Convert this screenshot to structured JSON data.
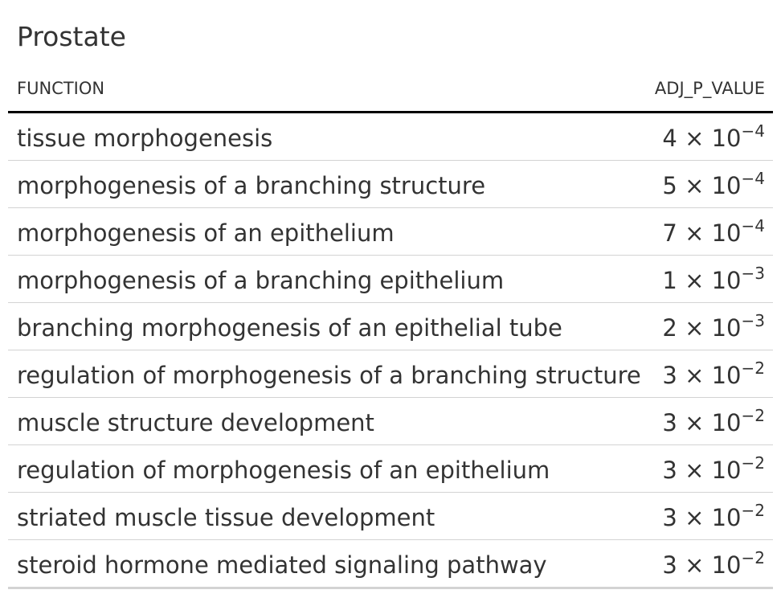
{
  "title": "Prostate",
  "columns": {
    "function": "FUNCTION",
    "adj_p_value": "ADJ_P_VALUE"
  },
  "rows": [
    {
      "function": "tissue morphogenesis",
      "mantissa": "4",
      "times": "×",
      "base": "10",
      "exponent": "−4"
    },
    {
      "function": "morphogenesis of a branching structure",
      "mantissa": "5",
      "times": "×",
      "base": "10",
      "exponent": "−4"
    },
    {
      "function": "morphogenesis of an epithelium",
      "mantissa": "7",
      "times": "×",
      "base": "10",
      "exponent": "−4"
    },
    {
      "function": "morphogenesis of a branching epithelium",
      "mantissa": "1",
      "times": "×",
      "base": "10",
      "exponent": "−3"
    },
    {
      "function": "branching morphogenesis of an epithelial tube",
      "mantissa": "2",
      "times": "×",
      "base": "10",
      "exponent": "−3"
    },
    {
      "function": "regulation of morphogenesis of a branching structure",
      "mantissa": "3",
      "times": "×",
      "base": "10",
      "exponent": "−2"
    },
    {
      "function": "muscle structure development",
      "mantissa": "3",
      "times": "×",
      "base": "10",
      "exponent": "−2"
    },
    {
      "function": "regulation of morphogenesis of an epithelium",
      "mantissa": "3",
      "times": "×",
      "base": "10",
      "exponent": "−2"
    },
    {
      "function": "striated muscle tissue development",
      "mantissa": "3",
      "times": "×",
      "base": "10",
      "exponent": "−2"
    },
    {
      "function": "steroid hormone mediated signaling pathway",
      "mantissa": "3",
      "times": "×",
      "base": "10",
      "exponent": "−2"
    }
  ]
}
